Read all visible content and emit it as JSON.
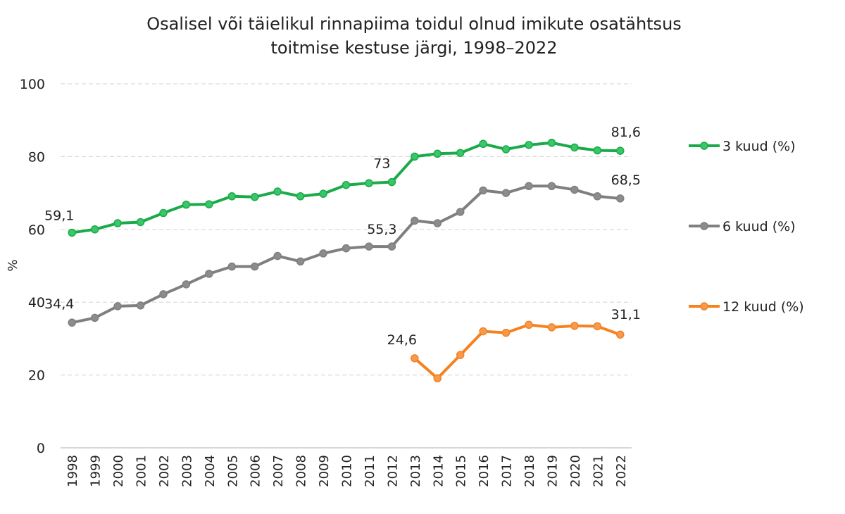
{
  "chart_data": {
    "type": "line",
    "title": [
      "Osalisel või täielikul rinnapiima toidul olnud imikute osatähtsus",
      "toitmise kestuse järgi, 1998–2022"
    ],
    "ylabel": "%",
    "xlabel": "",
    "ylim": [
      0,
      100
    ],
    "yticks": [
      0,
      20,
      40,
      60,
      80,
      100
    ],
    "grid": true,
    "legend_position": "right",
    "x": [
      "1998",
      "1999",
      "2000",
      "2001",
      "2002",
      "2003",
      "2004",
      "2005",
      "2006",
      "2007",
      "2008",
      "2009",
      "2010",
      "2011",
      "2012",
      "2013",
      "2014",
      "2015",
      "2016",
      "2017",
      "2018",
      "2019",
      "2020",
      "2021",
      "2022"
    ],
    "series": [
      {
        "name": "3 kuud (%)",
        "color": "#1aaa4a",
        "marker_color": "#3cc66a",
        "values": [
          59.1,
          60.0,
          61.7,
          62.0,
          64.5,
          66.8,
          66.9,
          69.1,
          68.9,
          70.4,
          69.1,
          69.8,
          72.2,
          72.7,
          73.0,
          80.0,
          80.8,
          81.0,
          83.5,
          82.0,
          83.2,
          83.8,
          82.5,
          81.7,
          81.6
        ],
        "labels": {
          "0": "59,1",
          "14": "73",
          "24": "81,6"
        }
      },
      {
        "name": "6 kuud (%)",
        "color": "#7f7f7f",
        "marker_color": "#8c8c8c",
        "values": [
          34.4,
          35.7,
          38.9,
          39.1,
          42.2,
          44.9,
          47.8,
          49.8,
          49.8,
          52.7,
          51.2,
          53.4,
          54.8,
          55.3,
          55.3,
          62.4,
          61.7,
          64.8,
          70.7,
          70.0,
          71.9,
          71.9,
          70.9,
          69.1,
          68.5
        ],
        "labels": {
          "0": "34,4",
          "14": "55,3",
          "24": "68,5"
        }
      },
      {
        "name": "12 kuud (%)",
        "color": "#f5821f",
        "marker_color": "#f59a50",
        "values": [
          null,
          null,
          null,
          null,
          null,
          null,
          null,
          null,
          null,
          null,
          null,
          null,
          null,
          null,
          null,
          24.6,
          19.1,
          25.5,
          32.0,
          31.6,
          33.8,
          33.1,
          33.5,
          33.4,
          31.1
        ],
        "labels": {
          "15": "24,6",
          "24": "31,1"
        }
      }
    ]
  }
}
